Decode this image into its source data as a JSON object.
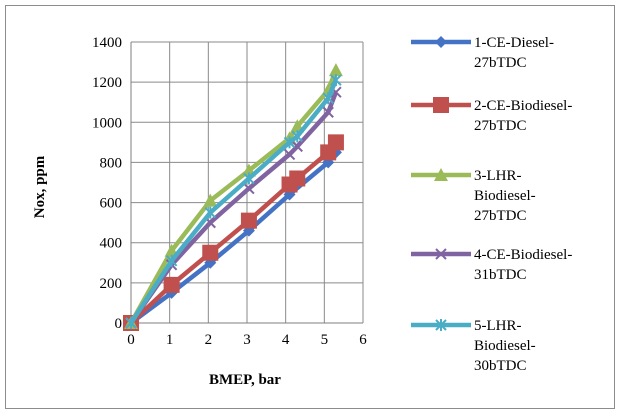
{
  "chart_data": {
    "type": "line",
    "title": "",
    "xlabel": "BMEP, bar",
    "ylabel": "Nox, ppm",
    "xlim": [
      0,
      6
    ],
    "ylim": [
      0,
      1400
    ],
    "xticks": [
      "0",
      "1",
      "2",
      "3",
      "4",
      "5",
      "6"
    ],
    "yticks": [
      "0",
      "200",
      "400",
      "600",
      "800",
      "1000",
      "1200",
      "1400"
    ],
    "grid": true,
    "legend_position": "right",
    "series": [
      {
        "name": "1-CE-Diesel-27bTDC",
        "legend_lines": [
          "1-CE-Diesel-",
          "27bTDC"
        ],
        "color": "#4472C4",
        "marker": "diamond",
        "x": [
          0,
          1.05,
          2.05,
          3.05,
          4.1,
          5.1,
          5.3
        ],
        "y": [
          0,
          150,
          300,
          460,
          640,
          800,
          850
        ]
      },
      {
        "name": "2-CE-Biodiesel-27bTDC",
        "legend_lines": [
          "2-CE-Biodiesel-",
          "27bTDC"
        ],
        "color": "#C0504D",
        "marker": "square",
        "x": [
          0,
          1.05,
          2.05,
          3.05,
          4.1,
          4.3,
          5.1,
          5.3
        ],
        "y": [
          0,
          190,
          350,
          510,
          690,
          720,
          850,
          900
        ]
      },
      {
        "name": "3-LHR-Biodiesel-27bTDC",
        "legend_lines": [
          "3-LHR-",
          "Biodiesel-",
          "27bTDC"
        ],
        "color": "#9BBB59",
        "marker": "triangle",
        "x": [
          0,
          1.05,
          2.05,
          3.05,
          4.1,
          4.3,
          5.1,
          5.3
        ],
        "y": [
          0,
          360,
          610,
          760,
          920,
          980,
          1160,
          1260
        ]
      },
      {
        "name": "4-CE-Biodiesel-31bTDC",
        "legend_lines": [
          "4-CE-Biodiesel-",
          "31bTDC"
        ],
        "color": "#8064A2",
        "marker": "x",
        "x": [
          0,
          1.05,
          2.05,
          3.05,
          4.1,
          4.3,
          5.1,
          5.3
        ],
        "y": [
          0,
          290,
          500,
          670,
          840,
          880,
          1050,
          1150
        ]
      },
      {
        "name": "5-LHR-Biodiesel-30bTDC",
        "legend_lines": [
          "5-LHR-",
          "Biodiesel-",
          "30bTDC"
        ],
        "color": "#4BACC6",
        "marker": "asterisk",
        "x": [
          0,
          1.05,
          2.05,
          3.05,
          4.1,
          4.3,
          5.1,
          5.3
        ],
        "y": [
          0,
          310,
          550,
          720,
          900,
          930,
          1120,
          1210
        ]
      }
    ]
  }
}
